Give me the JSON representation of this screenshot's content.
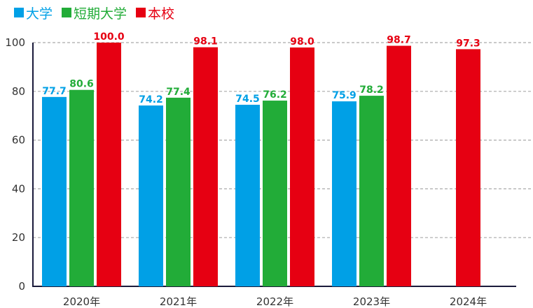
{
  "chart_data": {
    "type": "bar",
    "categories": [
      "2020年",
      "2021年",
      "2022年",
      "2023年",
      "2024年"
    ],
    "series": [
      {
        "name": "大学",
        "color": "#00a0e6",
        "values": [
          77.7,
          74.2,
          74.5,
          75.9,
          null
        ]
      },
      {
        "name": "短期大学",
        "color": "#22ac38",
        "values": [
          80.6,
          77.4,
          76.2,
          78.2,
          null
        ]
      },
      {
        "name": "本校",
        "color": "#e60012",
        "values": [
          100.0,
          98.1,
          98.0,
          98.7,
          97.3
        ]
      }
    ],
    "ylim": [
      0,
      100
    ],
    "yticks": [
      0,
      20,
      40,
      60,
      80,
      100
    ],
    "grid": true,
    "legend": "top-left",
    "data_labels": true
  }
}
